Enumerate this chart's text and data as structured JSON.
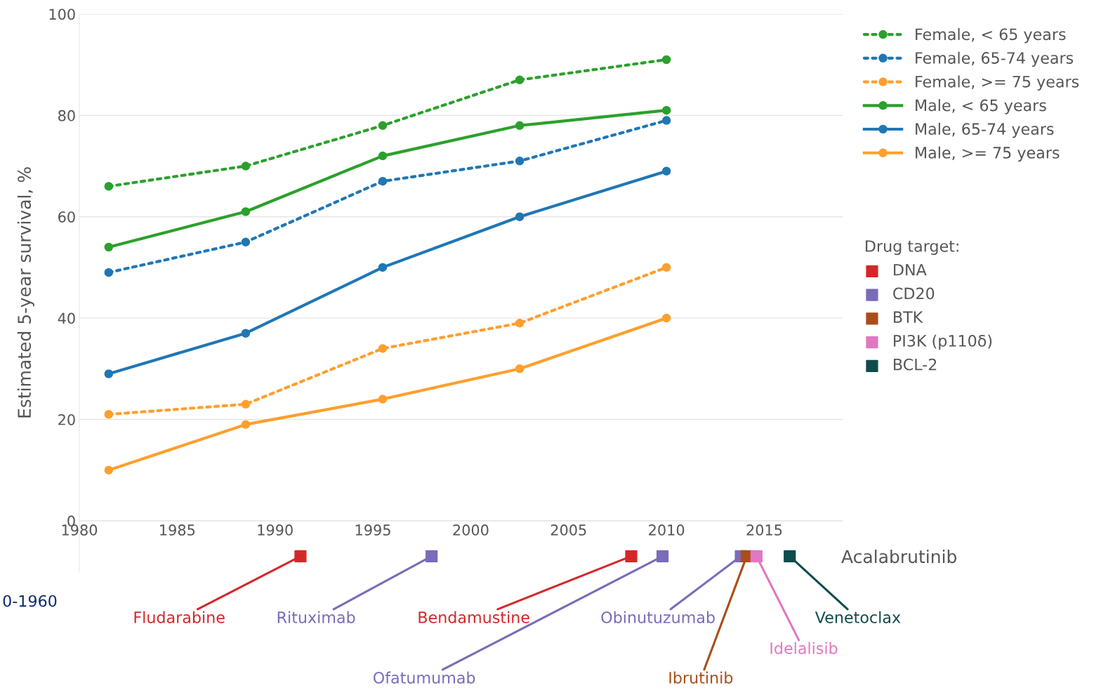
{
  "chart_data": {
    "type": "line",
    "ylabel": "Estimated 5-year survival, %",
    "xlim": [
      1980,
      2019
    ],
    "ylim": [
      -10,
      100
    ],
    "xticks": [
      1980,
      1985,
      1990,
      1995,
      2000,
      2005,
      2010,
      2015
    ],
    "yticks": [
      0,
      20,
      40,
      60,
      80,
      100
    ],
    "grid": "y",
    "legend": "top right",
    "legend_title": "Drug target:",
    "marker": "circle",
    "x": [
      1981.5,
      1988.5,
      1995.5,
      2002.5,
      2010
    ],
    "series": [
      {
        "name": "Female, < 65 years",
        "color": "#2ca02c",
        "line_style": "dotted",
        "values": [
          66,
          70,
          78,
          87,
          91
        ]
      },
      {
        "name": "Female, 65-74 years",
        "color": "#1f77b4",
        "line_style": "dotted",
        "values": [
          49,
          55,
          67,
          71,
          79
        ]
      },
      {
        "name": "Female, >= 75 years",
        "color": "#ff9f2e",
        "line_style": "dotted",
        "values": [
          21,
          23,
          34,
          39,
          50
        ]
      },
      {
        "name": "Male, < 65 years",
        "color": "#2ca02c",
        "line_style": "solid",
        "values": [
          54,
          61,
          72,
          78,
          81
        ]
      },
      {
        "name": "Male, 65-74 years",
        "color": "#1f77b4",
        "line_style": "solid",
        "values": [
          29,
          37,
          50,
          60,
          69
        ]
      },
      {
        "name": "Male, >= 75 years",
        "color": "#ff9f2e",
        "line_style": "solid",
        "values": [
          10,
          19,
          24,
          30,
          40
        ]
      },
      {
        "name": "DNA",
        "type": "scatter",
        "marker": "square",
        "color": "#d62728",
        "x": [
          1991.3,
          2008.2
        ],
        "values": [
          -7,
          -7
        ]
      },
      {
        "name": "CD20",
        "type": "scatter",
        "marker": "square",
        "color": "#7b6bb8",
        "x": [
          1998,
          2009.8,
          2013.8
        ],
        "values": [
          -7,
          -7,
          -7
        ]
      },
      {
        "name": "BTK",
        "type": "scatter",
        "marker": "square",
        "color": "#a94e1a",
        "x": [
          2014.1
        ],
        "values": [
          -7
        ]
      },
      {
        "name": "PI3K (p110δ)",
        "type": "scatter",
        "marker": "square",
        "color": "#e377c2",
        "x": [
          2014.6
        ],
        "values": [
          -7
        ]
      },
      {
        "name": "BCL-2",
        "type": "scatter",
        "marker": "square",
        "color": "#0f4c4c",
        "x": [
          2016.3
        ],
        "values": [
          -7
        ]
      }
    ],
    "annotations": [
      "0-1960",
      {
        "text": "Fludarabine",
        "x": 1991.3,
        "y": -7
      },
      {
        "text": "Rituximab",
        "x": 1998,
        "y": -7
      },
      {
        "text": "Bendamustine",
        "x": 2008.2,
        "y": -7
      },
      {
        "text": "Ofatumumab",
        "x": 2009.8,
        "y": -7
      },
      {
        "text": "Obinutuzumab",
        "x": 2013.8,
        "y": -7
      },
      {
        "text": "Ibrutinib",
        "x": 2014.1,
        "y": -7
      },
      {
        "text": "Idelalisib",
        "x": 2014.6,
        "y": -7
      },
      {
        "text": "Venetoclax",
        "x": 2016.3,
        "y": -7
      },
      "Acalabrutinib"
    ]
  }
}
